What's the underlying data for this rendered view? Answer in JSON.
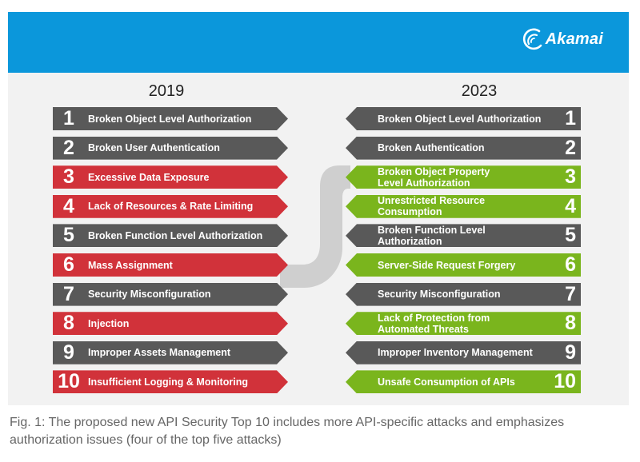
{
  "logo": {
    "name": "Akamai",
    "icon": "akamai-wave-icon"
  },
  "years": {
    "left": "2019",
    "right": "2023"
  },
  "colors": {
    "gray": "#595959",
    "red": "#d1323a",
    "green": "#7ab51d",
    "header": "#0b97db"
  },
  "list_2019": [
    {
      "num": "1",
      "label": "Broken Object Level Authorization",
      "color": "gray"
    },
    {
      "num": "2",
      "label": "Broken User Authentication",
      "color": "gray"
    },
    {
      "num": "3",
      "label": "Excessive Data Exposure",
      "color": "red"
    },
    {
      "num": "4",
      "label": "Lack of Resources & Rate Limiting",
      "color": "red"
    },
    {
      "num": "5",
      "label": "Broken Function Level Authorization",
      "color": "gray"
    },
    {
      "num": "6",
      "label": "Mass Assignment",
      "color": "red"
    },
    {
      "num": "7",
      "label": "Security Misconfiguration",
      "color": "gray"
    },
    {
      "num": "8",
      "label": "Injection",
      "color": "red"
    },
    {
      "num": "9",
      "label": "Improper Assets Management",
      "color": "gray"
    },
    {
      "num": "10",
      "label": "Insufficient Logging & Monitoring",
      "color": "red"
    }
  ],
  "list_2023": [
    {
      "num": "1",
      "label": "Broken Object Level Authorization",
      "color": "gray"
    },
    {
      "num": "2",
      "label": "Broken Authentication",
      "color": "gray"
    },
    {
      "num": "3",
      "label": "Broken Object Property\nLevel Authorization",
      "color": "green"
    },
    {
      "num": "4",
      "label": "Unrestricted Resource Consumption",
      "color": "green"
    },
    {
      "num": "5",
      "label": "Broken Function Level Authorization",
      "color": "gray"
    },
    {
      "num": "6",
      "label": "Server-Side Request Forgery",
      "color": "green"
    },
    {
      "num": "7",
      "label": "Security Misconfiguration",
      "color": "gray"
    },
    {
      "num": "8",
      "label": "Lack of Protection from\nAutomated Threats",
      "color": "green"
    },
    {
      "num": "9",
      "label": "Improper Inventory Management",
      "color": "gray"
    },
    {
      "num": "10",
      "label": "Unsafe Consumption of APIs",
      "color": "green"
    }
  ],
  "caption": "Fig. 1: The proposed new API Security Top 10 includes more API-specific attacks and emphasizes authorization issues (four of the top five attacks)"
}
